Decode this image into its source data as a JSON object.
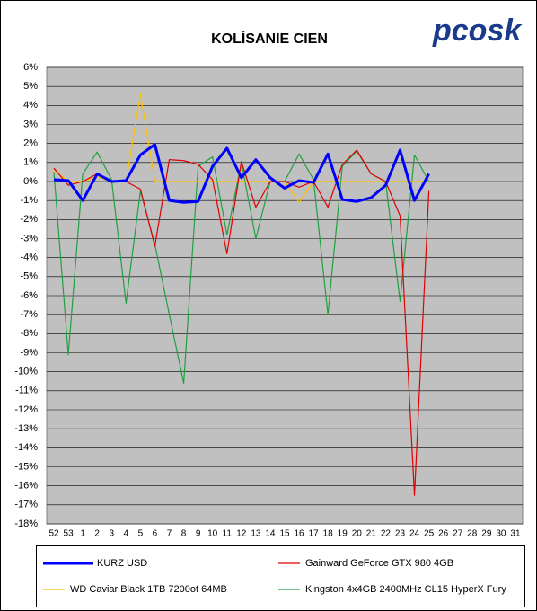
{
  "chart_data": {
    "type": "line",
    "title": "KOLÍSANIE CIEN",
    "logo": "pcosk",
    "categories": [
      "52",
      "53",
      "1",
      "2",
      "3",
      "4",
      "5",
      "6",
      "7",
      "8",
      "9",
      "10",
      "11",
      "12",
      "13",
      "14",
      "15",
      "16",
      "17",
      "18",
      "19",
      "20",
      "21",
      "22",
      "23",
      "24",
      "25",
      "26",
      "27",
      "28",
      "29",
      "30",
      "31"
    ],
    "series": [
      {
        "name": "KURZ USD",
        "color": "#0000ff",
        "values": [
          0.1,
          0.05,
          -1.0,
          0.4,
          0.0,
          0.05,
          1.4,
          1.95,
          -1.0,
          -1.1,
          -1.05,
          0.8,
          1.75,
          0.2,
          1.15,
          0.2,
          -0.35,
          0.05,
          -0.05,
          1.45,
          -0.95,
          -1.05,
          -0.85,
          -0.2,
          1.65,
          -1.0,
          0.4,
          null,
          null,
          null,
          null,
          null,
          null
        ]
      },
      {
        "name": "Gainward GeForce GTX 980 4GB",
        "color": "#e00000",
        "values": [
          0.7,
          -0.2,
          0.0,
          0.4,
          0.0,
          0.0,
          -0.4,
          -3.4,
          1.15,
          1.1,
          0.9,
          0.1,
          -3.8,
          1.05,
          -1.35,
          0.0,
          0.0,
          -0.3,
          0.0,
          -1.35,
          0.9,
          1.65,
          0.4,
          0.0,
          -1.8,
          -16.5,
          -0.5,
          null,
          null,
          null,
          null,
          null,
          null
        ]
      },
      {
        "name": "WD Caviar Black 1TB 7200ot 64MB",
        "color": "#ffc000",
        "values": [
          0.6,
          0.0,
          0.0,
          0.25,
          0.0,
          0.0,
          4.6,
          0.0,
          0.0,
          0.0,
          0.0,
          0.0,
          0.0,
          0.0,
          0.0,
          0.0,
          0.0,
          -1.1,
          0.0,
          0.0,
          0.0,
          0.0,
          0.0,
          0.0,
          0.0,
          0.0,
          0.0,
          null,
          null,
          null,
          null,
          null,
          null
        ]
      },
      {
        "name": "Kingston 4x4GB 2400MHz CL15 HyperX Fury",
        "color": "#20a040",
        "values": [
          0.5,
          -9.1,
          0.4,
          1.55,
          0.1,
          -6.4,
          -0.5,
          -3.3,
          -7.0,
          -10.6,
          0.8,
          1.3,
          -2.8,
          1.0,
          -3.0,
          0.0,
          0.0,
          1.45,
          0.1,
          -7.0,
          0.8,
          1.6,
          0.4,
          0.0,
          -6.3,
          1.4,
          0.0,
          null,
          null,
          null,
          null,
          null,
          null
        ]
      }
    ],
    "ylim": [
      -18,
      6
    ],
    "yticks": [
      {
        "value": -18,
        "label": "-18%"
      },
      {
        "value": -17,
        "label": "-17%"
      },
      {
        "value": -16,
        "label": "-16%"
      },
      {
        "value": -15,
        "label": "-15%"
      },
      {
        "value": -14,
        "label": "-14%"
      },
      {
        "value": -13,
        "label": "-13%"
      },
      {
        "value": -12,
        "label": "-12%"
      },
      {
        "value": -11,
        "label": "-11%"
      },
      {
        "value": -10,
        "label": "-10%"
      },
      {
        "value": -9,
        "label": "-9%"
      },
      {
        "value": -8,
        "label": "-8%"
      },
      {
        "value": -7,
        "label": "-7%"
      },
      {
        "value": -6,
        "label": "-6%"
      },
      {
        "value": -5,
        "label": "-5%"
      },
      {
        "value": -4,
        "label": "-4%"
      },
      {
        "value": -3,
        "label": "-3%"
      },
      {
        "value": -2,
        "label": "-2%"
      },
      {
        "value": -1,
        "label": "-1%"
      },
      {
        "value": 0,
        "label": "0%"
      },
      {
        "value": 1,
        "label": "1%"
      },
      {
        "value": 2,
        "label": "2%"
      },
      {
        "value": 3,
        "label": "3%"
      },
      {
        "value": 4,
        "label": "4%"
      },
      {
        "value": 5,
        "label": "5%"
      },
      {
        "value": 6,
        "label": "6%"
      }
    ],
    "grid": true,
    "legend": "bottom"
  }
}
